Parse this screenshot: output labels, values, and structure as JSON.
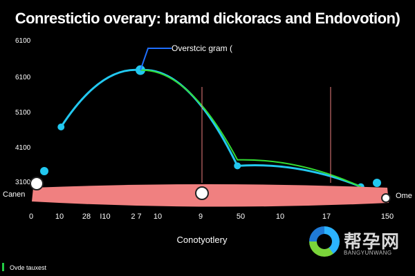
{
  "chart_data": {
    "type": "line",
    "title": "Conrestictio overary: bramd dickoracs and Endovotion)",
    "xlabel": "Conotyotlery",
    "ylabel": "",
    "y_ticks": [
      "6100",
      "6100",
      "5100",
      "4100",
      "3100"
    ],
    "x_ticks": [
      "0",
      "10",
      "28",
      "I10",
      "2 7",
      "10",
      "9",
      "50",
      "10",
      "17",
      "150"
    ],
    "left_label": "Canen",
    "right_label": "Ome",
    "series": [
      {
        "name": "Overstcic gram (",
        "color": "#22c8f0",
        "points": [
          [
            15,
            5100
          ],
          [
            60,
            7000
          ],
          [
            115,
            3800
          ],
          [
            185,
            3100
          ]
        ]
      },
      {
        "name": "",
        "color": "#33dd33",
        "points": [
          [
            60,
            7000
          ],
          [
            115,
            4000
          ],
          [
            185,
            3100
          ]
        ]
      }
    ],
    "band": {
      "color": "#f08080"
    },
    "grid": false,
    "legend": "top"
  },
  "footer": {
    "text": "Ovde tauxest"
  },
  "watermark": {
    "text": "帮孕网",
    "sub": "BANGYUNWANG"
  }
}
